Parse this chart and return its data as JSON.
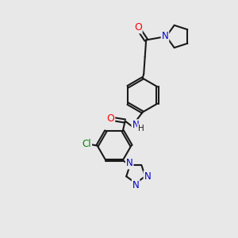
{
  "bg_color": "#e8e8e8",
  "bond_color": "#1a1a1a",
  "bond_width": 1.5,
  "atom_colors": {
    "O": "#ff0000",
    "N": "#0000cc",
    "Cl": "#008800",
    "C": "#1a1a1a"
  },
  "font_size": 9,
  "fig_size": [
    3.0,
    3.0
  ],
  "dpi": 100
}
